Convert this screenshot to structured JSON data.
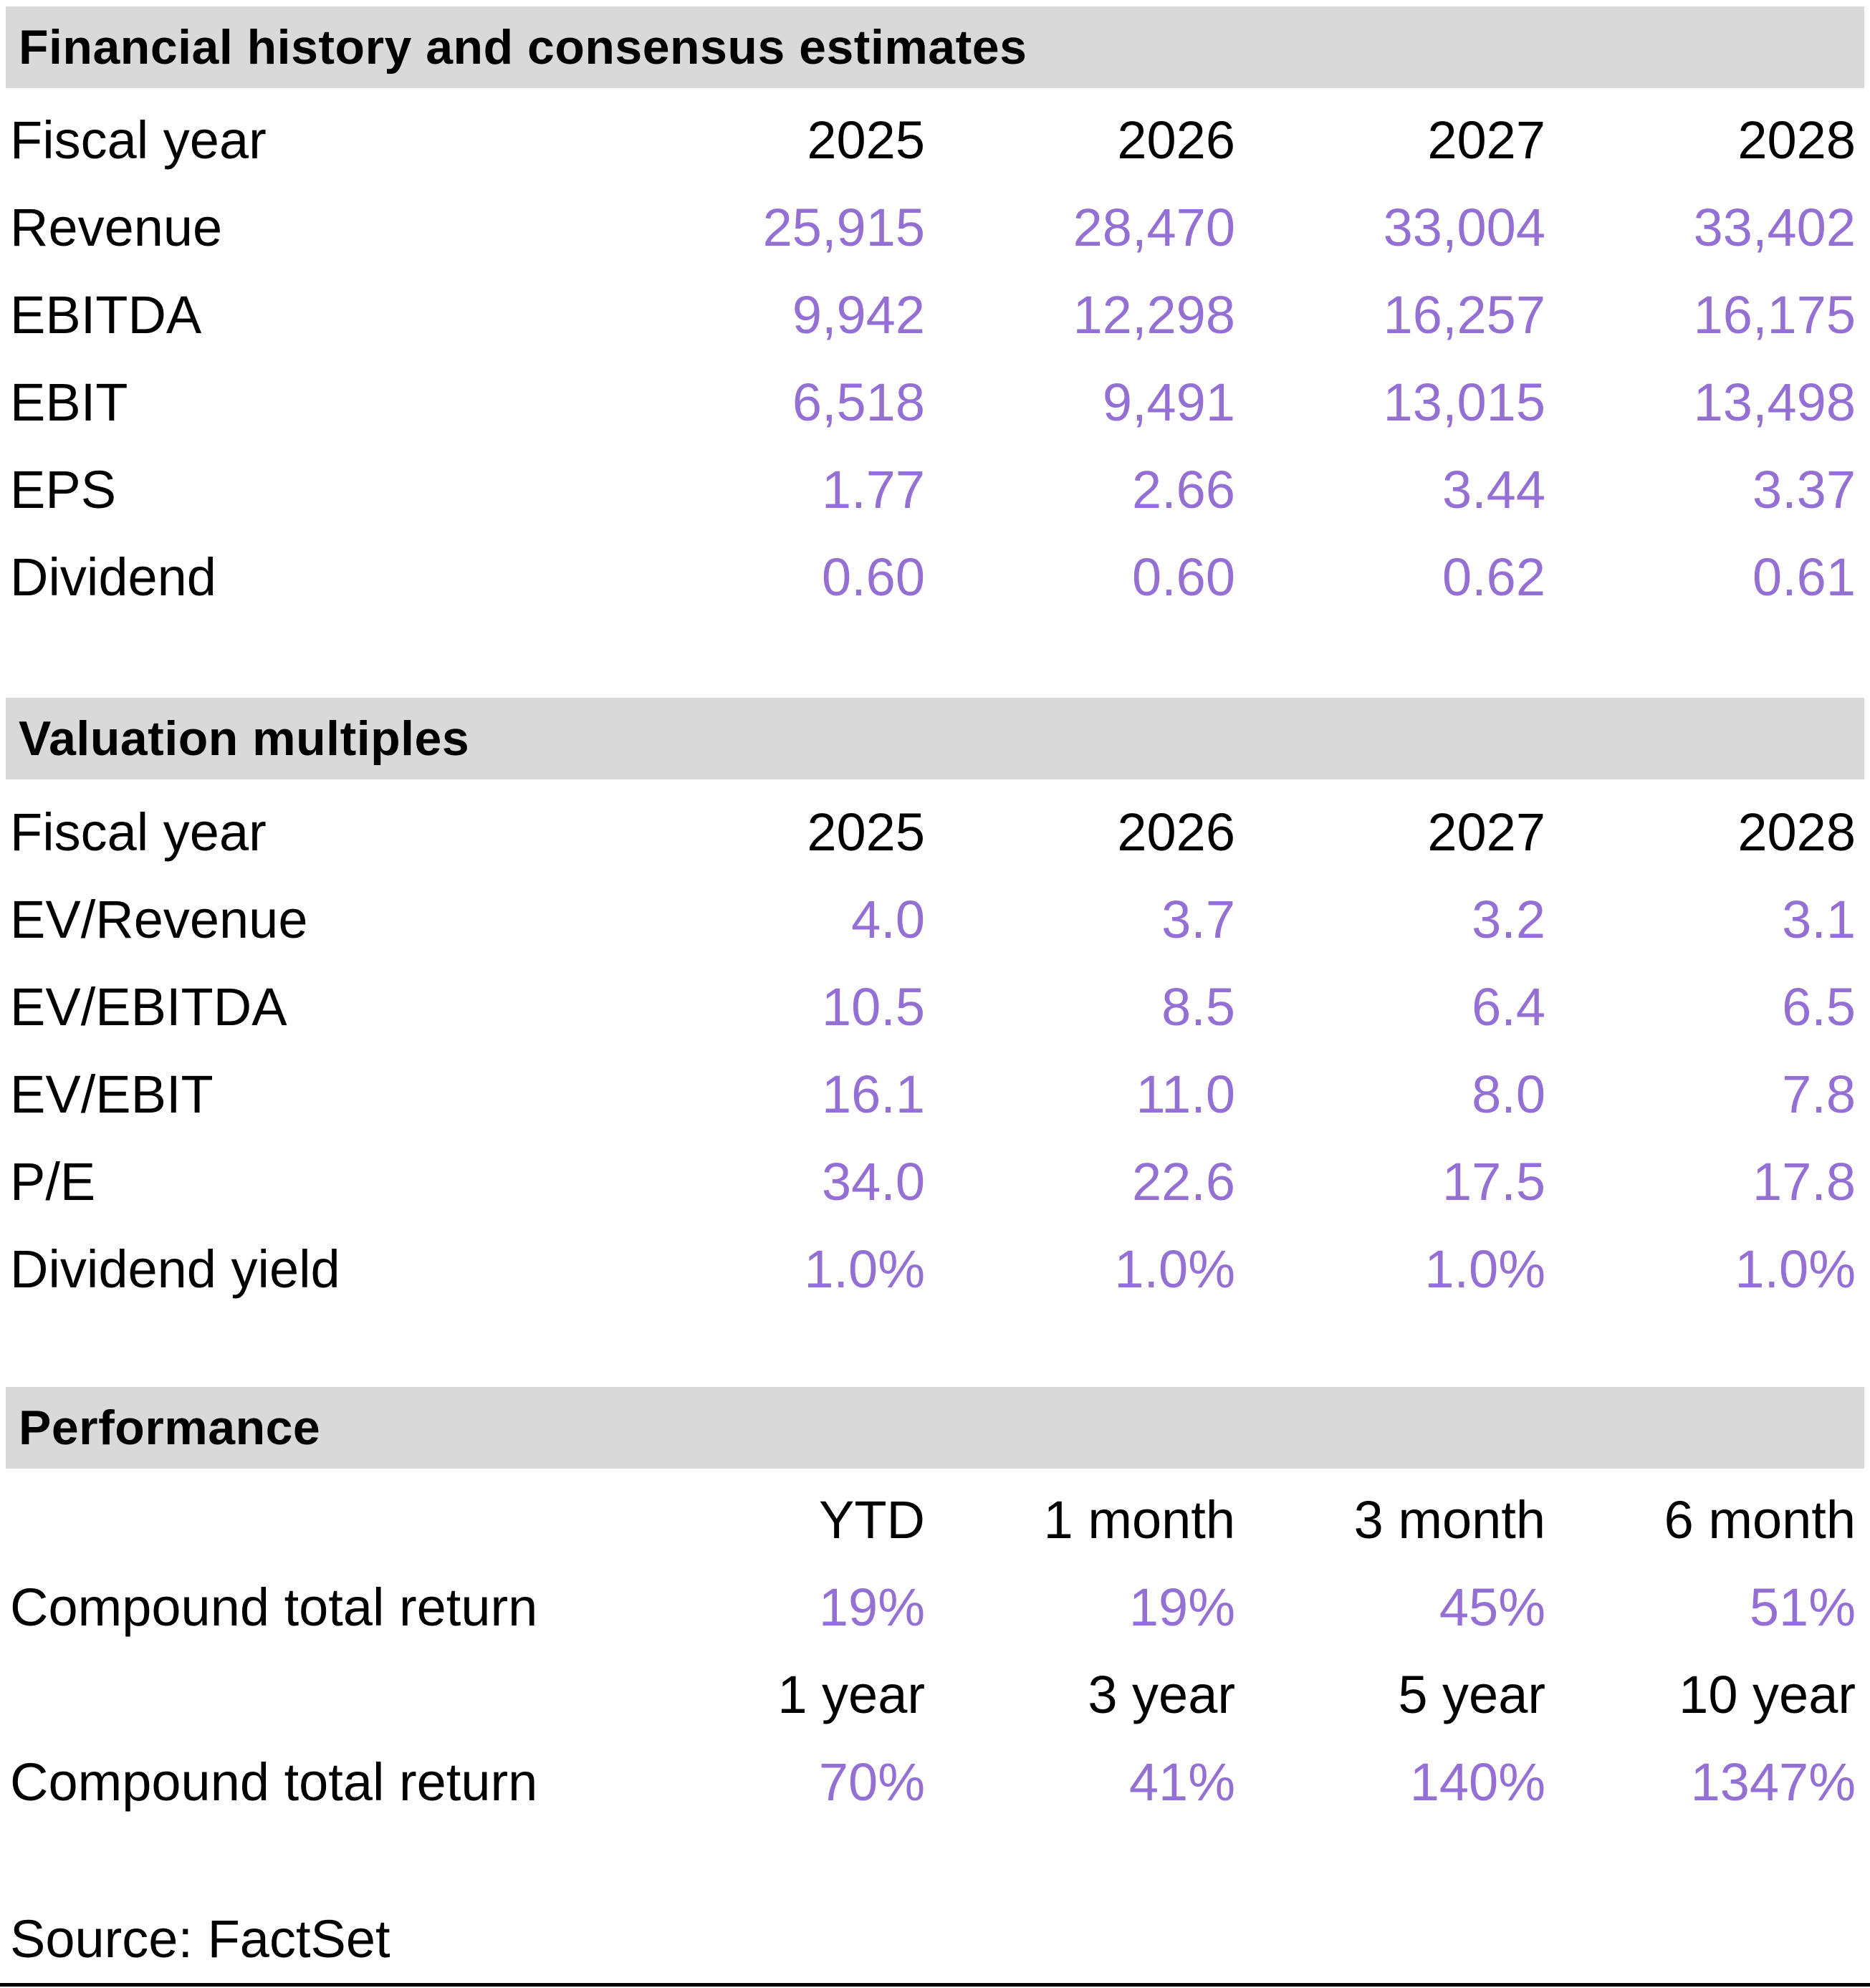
{
  "colors": {
    "accent_value_text": "#9470D4",
    "section_header_bg": "#D9D9D9",
    "body_text": "#000000",
    "bottom_rule": "#000000"
  },
  "sections": [
    {
      "title": "Financial history and consensus estimates",
      "header_row": {
        "label": "Fiscal year",
        "cols": [
          "2025",
          "2026",
          "2027",
          "2028"
        ]
      },
      "rows": [
        {
          "label": "Revenue",
          "values": [
            "25,915",
            "28,470",
            "33,004",
            "33,402"
          ]
        },
        {
          "label": "EBITDA",
          "values": [
            "9,942",
            "12,298",
            "16,257",
            "16,175"
          ]
        },
        {
          "label": "EBIT",
          "values": [
            "6,518",
            "9,491",
            "13,015",
            "13,498"
          ]
        },
        {
          "label": "EPS",
          "values": [
            "1.77",
            "2.66",
            "3.44",
            "3.37"
          ]
        },
        {
          "label": "Dividend",
          "values": [
            "0.60",
            "0.60",
            "0.62",
            "0.61"
          ]
        }
      ]
    },
    {
      "title": "Valuation multiples",
      "header_row": {
        "label": "Fiscal year",
        "cols": [
          "2025",
          "2026",
          "2027",
          "2028"
        ]
      },
      "rows": [
        {
          "label": "EV/Revenue",
          "values": [
            "4.0",
            "3.7",
            "3.2",
            "3.1"
          ]
        },
        {
          "label": "EV/EBITDA",
          "values": [
            "10.5",
            "8.5",
            "6.4",
            "6.5"
          ]
        },
        {
          "label": "EV/EBIT",
          "values": [
            "16.1",
            "11.0",
            "8.0",
            "7.8"
          ]
        },
        {
          "label": "P/E",
          "values": [
            "34.0",
            "22.6",
            "17.5",
            "17.8"
          ]
        },
        {
          "label": "Dividend yield",
          "values": [
            "1.0%",
            "1.0%",
            "1.0%",
            "1.0%"
          ]
        }
      ]
    },
    {
      "title": "Performance",
      "groups": [
        {
          "headers": [
            "YTD",
            "1 month",
            "3 month",
            "6 month"
          ],
          "row": {
            "label": "Compound total return",
            "values": [
              "19%",
              "19%",
              "45%",
              "51%"
            ]
          }
        },
        {
          "headers": [
            "1 year",
            "3 year",
            "5 year",
            "10 year"
          ],
          "row": {
            "label": "Compound total return",
            "values": [
              "70%",
              "41%",
              "140%",
              "1347%"
            ]
          }
        }
      ]
    }
  ],
  "source_note": "Source: FactSet"
}
